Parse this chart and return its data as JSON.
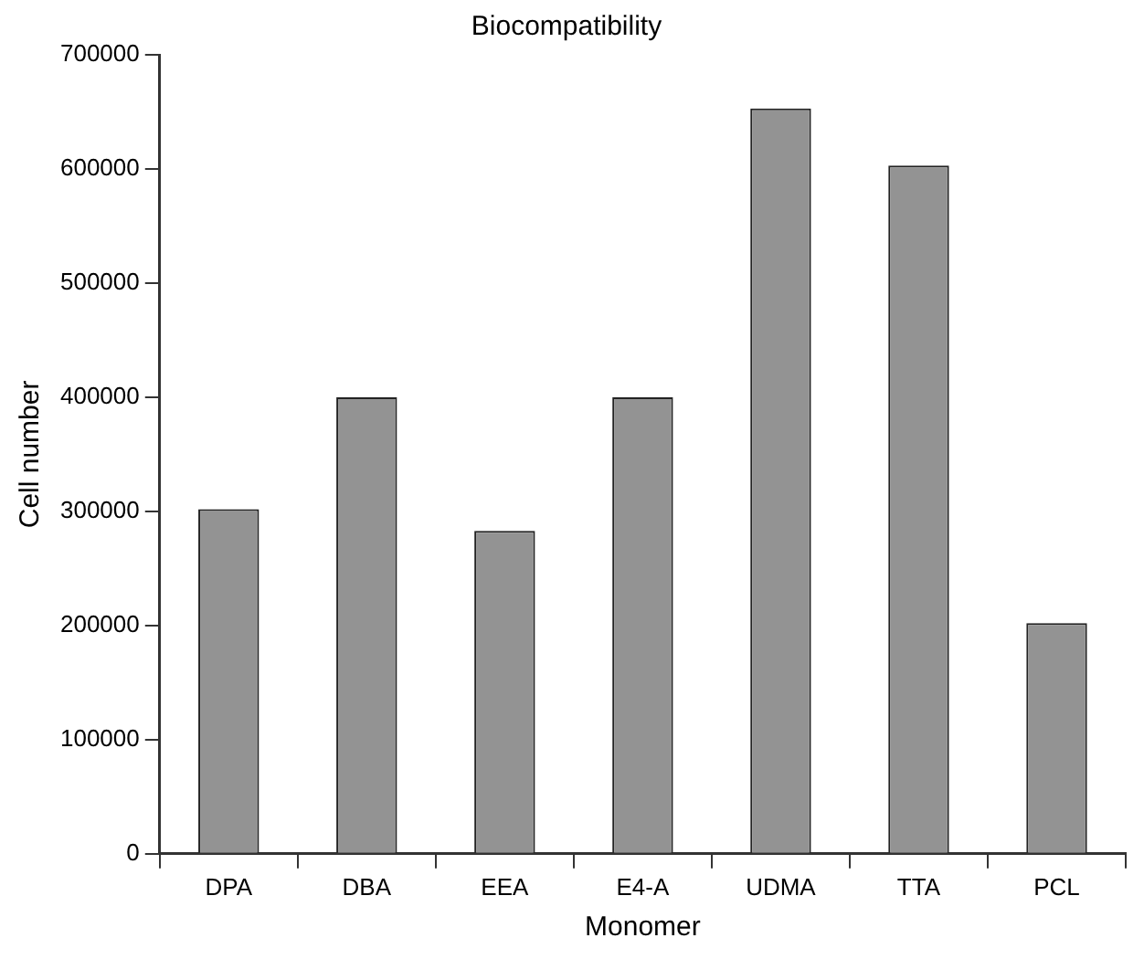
{
  "chart_data": {
    "type": "bar",
    "title": "Biocompatibility",
    "xlabel": "Monomer",
    "ylabel": "Cell number",
    "categories": [
      "DPA",
      "DBA",
      "EEA",
      "E4-A",
      "UDMA",
      "TTA",
      "PCL"
    ],
    "values": [
      302000,
      400000,
      283000,
      400000,
      653000,
      603000,
      202000
    ],
    "color": "#939393",
    "ylim": [
      0,
      700000
    ],
    "yticks": [
      0,
      100000,
      200000,
      300000,
      400000,
      500000,
      600000,
      700000
    ],
    "grid": false,
    "legend": false
  }
}
